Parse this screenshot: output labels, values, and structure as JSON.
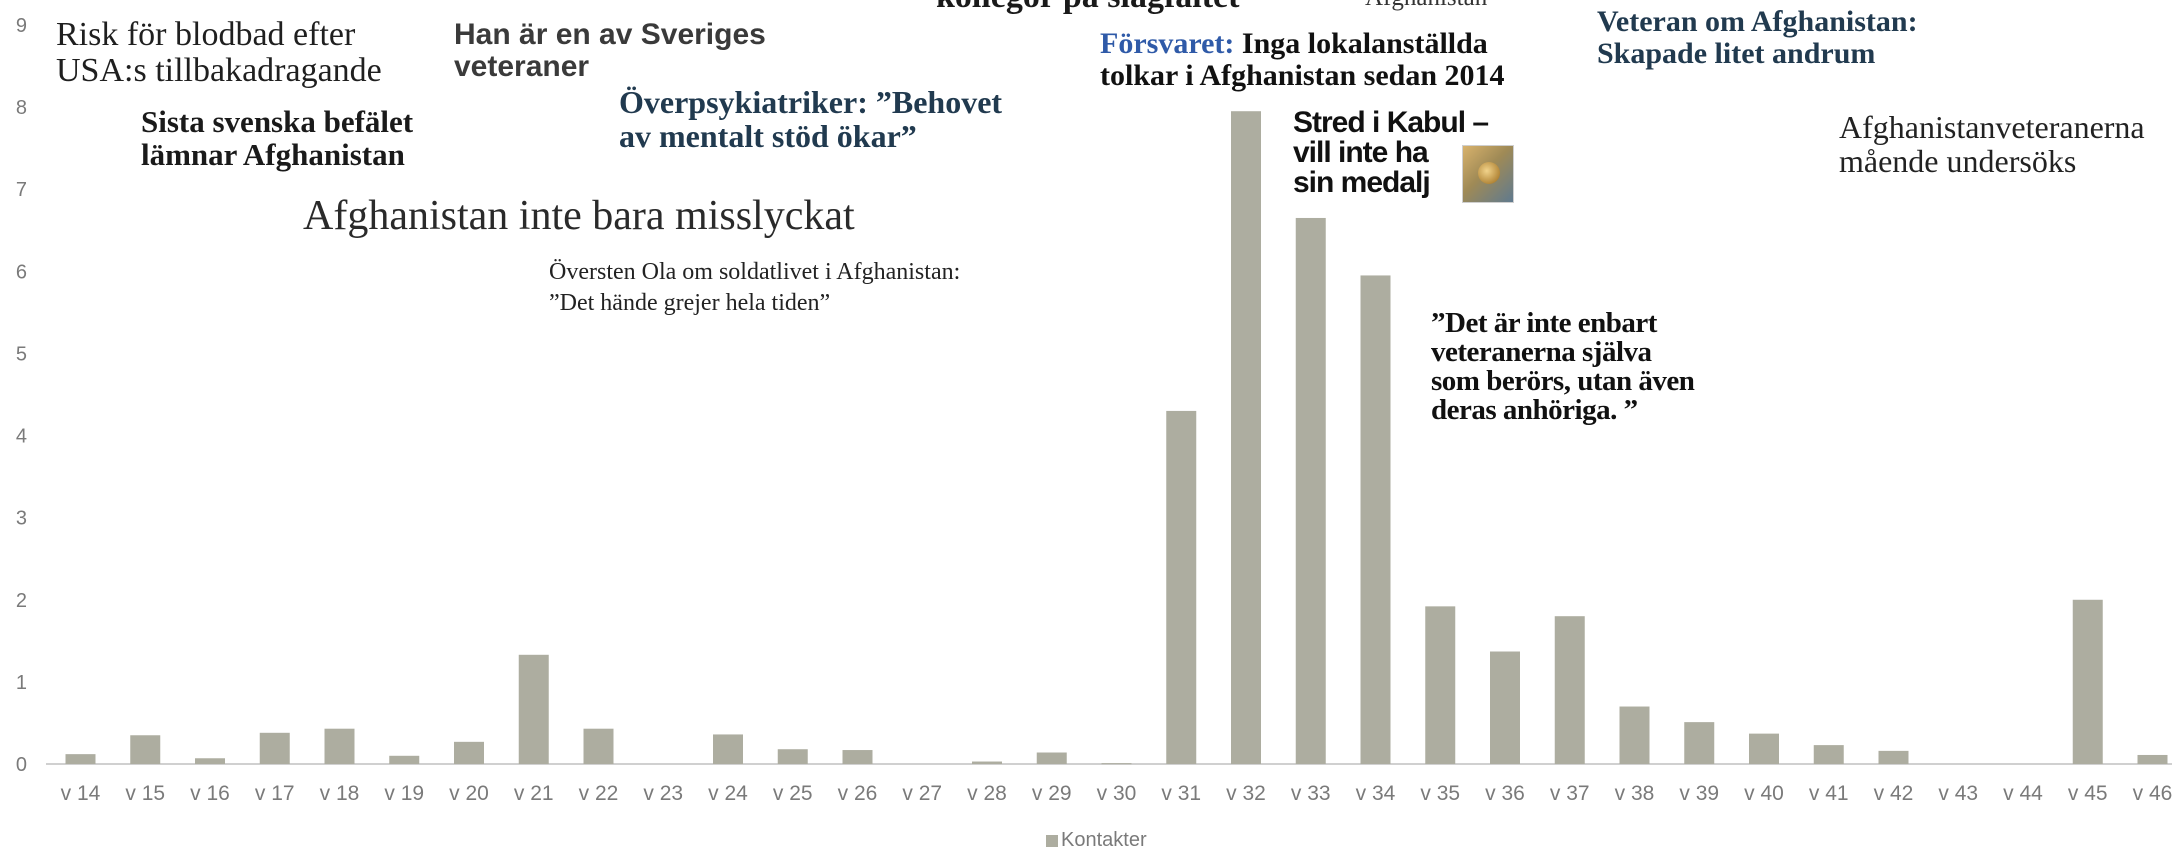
{
  "chart_data": {
    "type": "bar",
    "categories": [
      "v 14",
      "v 15",
      "v 16",
      "v 17",
      "v 18",
      "v 19",
      "v 20",
      "v 21",
      "v 22",
      "v 23",
      "v 24",
      "v 25",
      "v 26",
      "v 27",
      "v 28",
      "v 29",
      "v 30",
      "v 31",
      "v 32",
      "v 33",
      "v 34",
      "v 35",
      "v 36",
      "v 37",
      "v 38",
      "v 39",
      "v 40",
      "v 41",
      "v 42",
      "v 43",
      "v 44",
      "v 45",
      "v 46"
    ],
    "series": [
      {
        "name": "Kontakter",
        "values": [
          0.12,
          0.35,
          0.07,
          0.38,
          0.43,
          0.1,
          0.27,
          1.33,
          0.43,
          0,
          0.36,
          0.18,
          0.17,
          0,
          0.03,
          0.14,
          0.01,
          4.3,
          7.95,
          6.65,
          5.95,
          1.92,
          1.37,
          1.8,
          0.7,
          0.51,
          0.37,
          0.23,
          0.16,
          0,
          0,
          2.0,
          0.11
        ]
      }
    ],
    "ylim": [
      0,
      9
    ],
    "yticks": [
      0,
      1,
      2,
      3,
      4,
      5,
      6,
      7,
      8,
      9
    ],
    "grid": false,
    "legend": "bottom-center",
    "bar_color": "#adada0"
  },
  "annotations": [
    {
      "id": "risk",
      "text": "Risk för blodbad efter\nUSA:s tillbakadragande"
    },
    {
      "id": "veteraner",
      "text": "Han är en av Sveriges\nveteraner"
    },
    {
      "id": "kollegor",
      "text": "kollegor på slagfältet"
    },
    {
      "id": "afghanistan-top",
      "text": "Afghanistan"
    },
    {
      "id": "forsvaret-prefix",
      "text": "Försvaret:"
    },
    {
      "id": "forsvaret-rest",
      "text": " Inga lokalanställda\ntolkar i Afghanistan sedan 2014"
    },
    {
      "id": "veteran-andrum",
      "text": "Veteran om Afghanistan:\nSkapade litet andrum"
    },
    {
      "id": "sista",
      "text": "Sista svenska befälet\nlämnar Afghanistan"
    },
    {
      "id": "overpsyk",
      "text": "Överpsykiatriker: ”Behovet\nav mentalt stöd ökar”"
    },
    {
      "id": "stred",
      "text": "Stred i Kabul –\nvill inte ha\nsin medalj"
    },
    {
      "id": "veteranerna-mående",
      "text": "Afghanistanveteranerna\nmående undersöks"
    },
    {
      "id": "misslyckat",
      "text": "Afghanistan inte bara misslyckat"
    },
    {
      "id": "oversten",
      "text": "Översten Ola om soldatlivet i Afghanistan:\n”Det hände grejer hela tiden”"
    },
    {
      "id": "anhoriga",
      "text": "”Det är inte enbart\nveteranerna själva\nsom berörs, utan även\nderas anhöriga. ”"
    }
  ],
  "legend": {
    "label": "Kontakter"
  }
}
